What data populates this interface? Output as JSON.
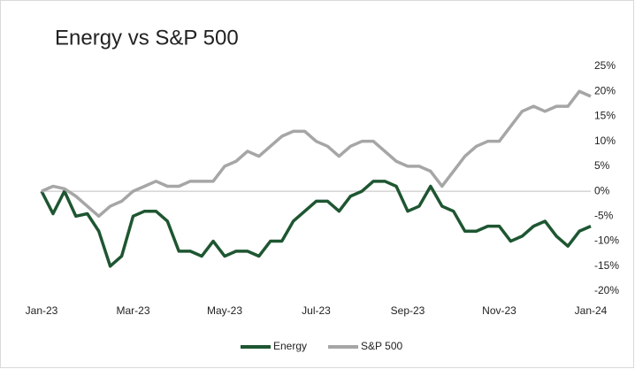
{
  "chart_data": {
    "type": "line",
    "title": "Energy vs S&P 500",
    "categories": [
      "Jan-23",
      null,
      null,
      null,
      null,
      null,
      null,
      null,
      "Mar-23",
      null,
      null,
      null,
      null,
      null,
      null,
      null,
      "May-23",
      null,
      null,
      null,
      null,
      null,
      null,
      null,
      "Jul-23",
      null,
      null,
      null,
      null,
      null,
      null,
      null,
      "Sep-23",
      null,
      null,
      null,
      null,
      null,
      null,
      null,
      "Nov-23",
      null,
      null,
      null,
      null,
      null,
      null,
      null,
      "Jan-24"
    ],
    "series": [
      {
        "name": "Energy",
        "color": "#1e5631",
        "values": [
          0,
          -4.5,
          0,
          -5,
          -4.5,
          -8,
          -15,
          -13,
          -5,
          -4,
          -4,
          -6,
          -12,
          -12,
          -13,
          -10,
          -13,
          -12,
          -12,
          -13,
          -10,
          -10,
          -6,
          -4,
          -2,
          -2,
          -4,
          -1,
          0,
          2,
          2,
          1,
          -4,
          -3,
          1,
          -3,
          -4,
          -8,
          -8,
          -7,
          -7,
          -10,
          -9,
          -7,
          -6,
          -9,
          -11,
          -8,
          -7
        ]
      },
      {
        "name": "S&P 500",
        "color": "#a6a6a6",
        "values": [
          0,
          1,
          0.5,
          -1,
          -3,
          -5,
          -3,
          -2,
          0,
          1,
          2,
          1,
          1,
          2,
          2,
          2,
          5,
          6,
          8,
          7,
          9,
          11,
          12,
          12,
          10,
          9,
          7,
          9,
          10,
          10,
          8,
          6,
          5,
          5,
          4,
          1,
          4,
          7,
          9,
          10,
          10,
          13,
          16,
          17,
          16,
          17,
          17,
          20,
          19
        ]
      }
    ],
    "ylim": [
      -20,
      25
    ],
    "yticks": [
      {
        "value": 25,
        "label": "25%"
      },
      {
        "value": 20,
        "label": "20%"
      },
      {
        "value": 15,
        "label": "15%"
      },
      {
        "value": 10,
        "label": "10%"
      },
      {
        "value": 5,
        "label": "5%"
      },
      {
        "value": 0,
        "label": "0%"
      },
      {
        "value": -5,
        "label": "-5%"
      },
      {
        "value": -10,
        "label": "-10%"
      },
      {
        "value": -15,
        "label": "-15%"
      },
      {
        "value": -20,
        "label": "-20%"
      }
    ],
    "legend": "bottom"
  }
}
